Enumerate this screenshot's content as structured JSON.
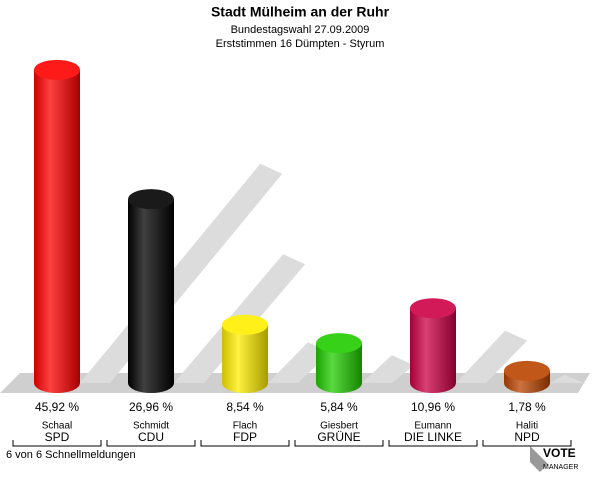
{
  "chart_data": {
    "type": "bar",
    "title": "Stadt Mülheim an der Ruhr",
    "subtitle": "Bundestagswahl 27.09.2009",
    "subtitle2": "Erststimmen 16 Dümpten - Styrum",
    "candidates": [
      "Schaal",
      "Schmidt",
      "Flach",
      "Giesbert",
      "Eumann",
      "Haliti"
    ],
    "categories": [
      "SPD",
      "CDU",
      "FDP",
      "GRÜNE",
      "DIE LINKE",
      "NPD"
    ],
    "values": [
      45.92,
      26.96,
      8.54,
      5.84,
      10.96,
      1.78
    ],
    "value_labels": [
      "45,92 %",
      "26,96 %",
      "8,54 %",
      "5,84 %",
      "10,96 %",
      "1,78 %"
    ],
    "colors": [
      "#ff0000",
      "#000000",
      "#ffee00",
      "#22cc00",
      "#cc0044",
      "#bb4400"
    ],
    "footer": "6 von 6 Schnellmeldungen",
    "logo": [
      "VOTE",
      "MANAGER"
    ]
  }
}
